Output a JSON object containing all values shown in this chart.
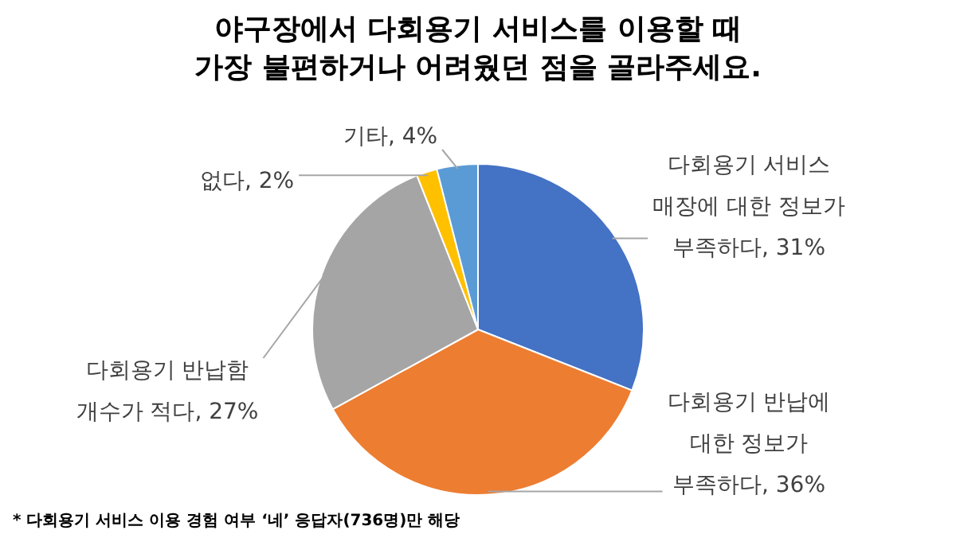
{
  "chart_data": {
    "type": "pie",
    "title": "야구장에서 다회용기 서비스를 이용할 때\n가장 불편하거나 어려웠던 점을 골라주세요.",
    "categories": [
      "다회용기 서비스 매장에 대한 정보가 부족하다",
      "다회용기 반납에 대한 정보가 부족하다",
      "다회용기 반납함 개수가 적다",
      "없다",
      "기타"
    ],
    "values": [
      31,
      36,
      27,
      2,
      4
    ],
    "value_labels": [
      "31%",
      "36%",
      "27%",
      "2%",
      "4%"
    ],
    "colors": [
      "#4472c4",
      "#ed7d31",
      "#a5a5a5",
      "#ffc000",
      "#5b9bd5"
    ],
    "annotations": [
      "* 다회용기 서비스 이용 경험 여부 ‘네’ 응답자(736명)만 해당"
    ]
  }
}
